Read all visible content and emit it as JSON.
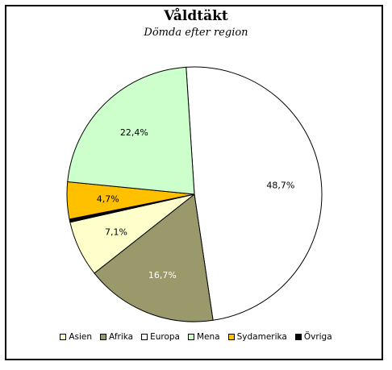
{
  "chart_data": {
    "type": "pie",
    "title": "Våldtäkt",
    "subtitle": "Dömda efter region",
    "categories": [
      "Asien",
      "Afrika",
      "Europa",
      "Mena",
      "Sydamerika",
      "Övriga"
    ],
    "values": [
      7.1,
      16.7,
      48.7,
      22.4,
      4.7,
      0.4
    ],
    "labels": [
      "7,1%",
      "16,7%",
      "48,7%",
      "22,4%",
      "4,7%",
      ""
    ],
    "colors": [
      "#FFFFCC",
      "#99996B",
      "#FFFFFF",
      "#CCFFCC",
      "#FFC000",
      "#000000"
    ],
    "slice_order": [
      "Europa",
      "Afrika",
      "Asien",
      "Övriga",
      "Sydamerika",
      "Mena"
    ],
    "legend_position": "bottom"
  }
}
